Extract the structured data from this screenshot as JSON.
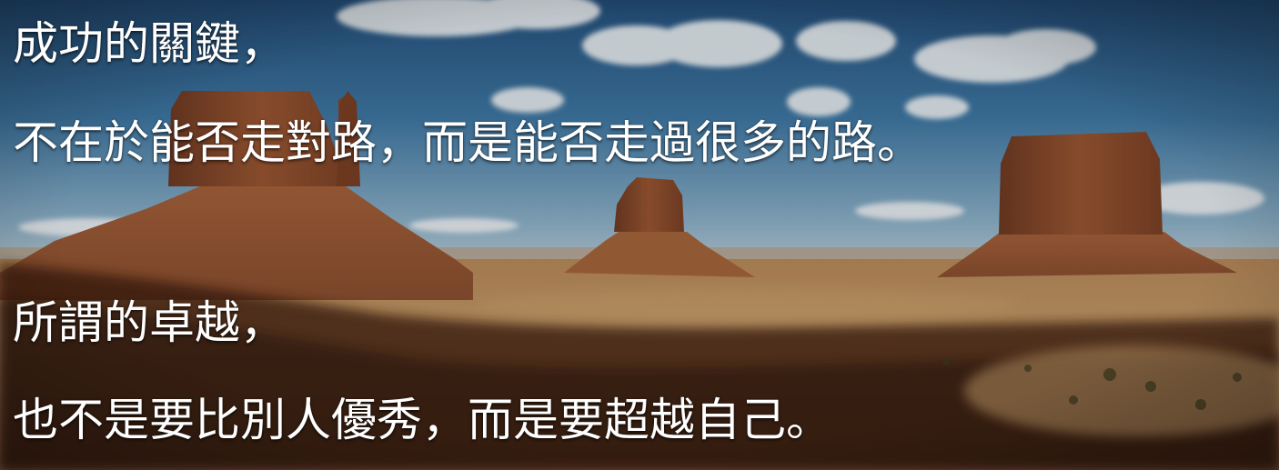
{
  "quote": {
    "lines": [
      "成功的關鍵，",
      "不在於能否走對路，而是能否走過很多的路。",
      "所謂的卓越，",
      "也不是要比別人優秀，而是要超越自己。"
    ]
  },
  "scene": {
    "description_icon": "desert-buttes-landscape",
    "colors": {
      "sky_top": "#2c5a86",
      "sky_mid": "#4a83ad",
      "sky_horizon": "#9cbcd0",
      "rock": "#8a4a2a",
      "rock_light": "#b8703f",
      "sand": "#c49a66",
      "shadow": "#4a2414",
      "text": "#ffffff"
    }
  }
}
